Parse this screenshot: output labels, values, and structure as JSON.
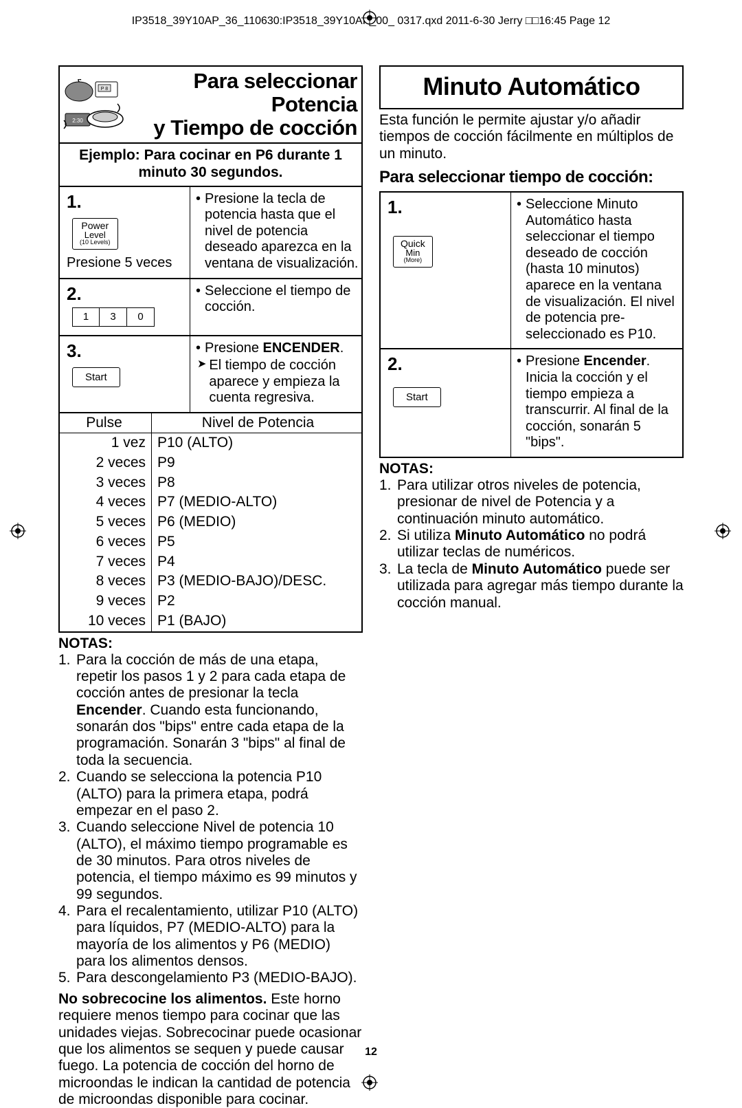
{
  "header": "IP3518_39Y10AP_36_110630:IP3518_39Y10AP_00_  0317.qxd  2011-6-30  Jerry  □□16:45  Page 12",
  "page_number": "12",
  "left": {
    "title_line1": "Para seleccionar Potencia",
    "title_line2": "y Tiempo de cocción",
    "example": "Ejemplo: Para cocinar en P6 durante 1 minuto 30 segundos.",
    "step1_num": "1.",
    "step1_btn_l1": "Power",
    "step1_btn_l2": "Level",
    "step1_btn_l3": "(10 Levels)",
    "step1_caption": "Presione 5 veces",
    "step1_text": "Presione la tecla de potencia hasta que el nivel de potencia deseado aparezca en la ventana de visualización.",
    "step2_num": "2.",
    "step2_k1": "1",
    "step2_k2": "3",
    "step2_k3": "0",
    "step2_text": "Seleccione el tiempo de cocción.",
    "step3_num": "3.",
    "step3_btn": "Start",
    "step3_text_a": "Presione ",
    "step3_text_b": "ENCENDER",
    "step3_text_c": ".",
    "step3_arrow": "El tiempo de cocción aparece y empieza la cuenta regresiva.",
    "pt_h1": "Pulse",
    "pt_h2": "Nivel de Potencia",
    "pt_rows": [
      {
        "a": "1 vez",
        "b": "P10 (ALTO)"
      },
      {
        "a": "2 veces",
        "b": "P9"
      },
      {
        "a": "3 veces",
        "b": "P8"
      },
      {
        "a": "4 veces",
        "b": "P7 (MEDIO-ALTO)"
      },
      {
        "a": "5 veces",
        "b": "P6 (MEDIO)"
      },
      {
        "a": "6 veces",
        "b": "P5"
      },
      {
        "a": "7 veces",
        "b": "P4"
      },
      {
        "a": "8 veces",
        "b": "P3 (MEDIO-BAJO)/DESC."
      },
      {
        "a": "9 veces",
        "b": "P2"
      },
      {
        "a": "10 veces",
        "b": "P1 (BAJO)"
      }
    ],
    "notes_heading": "NOTAS:",
    "note1_pre": "Para la cocción de más de una etapa, repetir los pasos 1 y 2 para cada etapa de cocción antes de presionar la tecla ",
    "note1_bold": "Encender",
    "note1_post": ". Cuando esta funcionando, sonarán dos  \"bips\" entre cada etapa de la programación. Sonarán 3 \"bips\" al final de toda la secuencia.",
    "note2": "Cuando se selecciona la potencia P10 (ALTO) para la primera etapa, podrá empezar en el paso 2.",
    "note3": "Cuando seleccione Nivel de potencia 10 (ALTO), el máximo tiempo programable es de 30 minutos. Para otros niveles de potencia, el tiempo máximo es 99 minutos y 99 segundos.",
    "note4": "Para el recalentamiento, utilizar P10 (ALTO) para líquidos, P7 (MEDIO-ALTO) para la mayoría de los alimentos y P6 (MEDIO) para los alimentos densos.",
    "note5": "Para descongelamiento P3 (MEDIO-BAJO).",
    "warn_bold": "No sobrecocine los alimentos.",
    "warn_rest": " Este horno requiere menos tiempo para cocinar que las unidades viejas. Sobrecocinar puede ocasionar que los alimentos se sequen y puede causar fuego. La potencia de cocción del horno de microondas le indican la cantidad de potencia de microondas disponible para cocinar."
  },
  "right": {
    "title": "Minuto Automático",
    "intro": "Esta función le permite ajustar y/o añadir tiempos de cocción fácilmente en múltiplos de un minuto.",
    "subtitle": "Para seleccionar tiempo de cocción:",
    "step1_num": "1.",
    "step1_btn_l1": "Quick",
    "step1_btn_l2": "Min",
    "step1_btn_l3": "(More)",
    "step1_text": "Seleccione Minuto Automático hasta seleccionar el tiempo deseado de cocción (hasta 10 minutos) aparece en la ventana de visualización. El nivel de potencia pre-seleccionado es P10.",
    "step2_num": "2.",
    "step2_btn": "Start",
    "step2_text_a": "Presione ",
    "step2_text_b": "Encender",
    "step2_text_c": ". Inicia la cocción y el tiempo empieza a transcurrir. Al final de la cocción, sonarán 5 \"bips\".",
    "notes_heading": "NOTAS:",
    "note1": "Para utilizar otros niveles de potencia, presionar de nivel de Potencia y a continuación minuto automático.",
    "note2_a": "Si utiliza ",
    "note2_b": "Minuto Automático",
    "note2_c": " no podrá utilizar teclas de numéricos.",
    "note3_a": "La tecla de ",
    "note3_b": "Minuto Automático",
    "note3_c": " puede ser utilizada para agregar más tiempo durante la cocción manual."
  }
}
